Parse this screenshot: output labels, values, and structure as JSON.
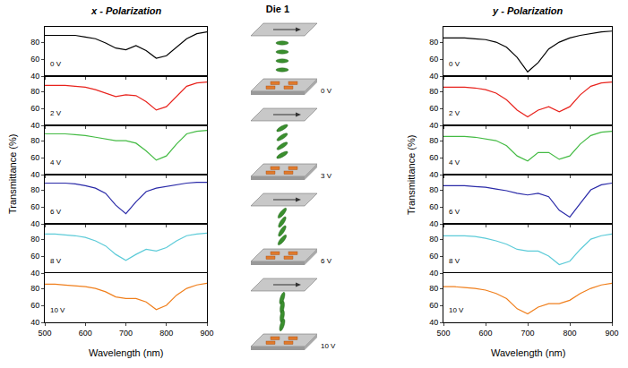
{
  "chart_data": [
    {
      "type": "line",
      "title": "x - Polarization",
      "x_label": "Wavelength (nm)",
      "y_label": "Transmittance (%)",
      "x": [
        500,
        525,
        550,
        575,
        600,
        625,
        650,
        675,
        700,
        725,
        750,
        775,
        800,
        825,
        850,
        875,
        900
      ],
      "xlim": [
        500,
        900
      ],
      "xticks": [
        500,
        600,
        700,
        800,
        900
      ],
      "ylim": [
        40,
        98
      ],
      "yticks": [
        40,
        60,
        80
      ],
      "series": [
        {
          "name": "0 V",
          "color": "#000000",
          "values": [
            88,
            88,
            88,
            88,
            86,
            84,
            79,
            73,
            71,
            76,
            70,
            61,
            64,
            74,
            84,
            90,
            92
          ]
        },
        {
          "name": "2 V",
          "color": "#e8221c",
          "values": [
            87,
            87,
            87,
            86,
            85,
            82,
            78,
            74,
            76,
            75,
            68,
            58,
            62,
            74,
            86,
            90,
            91
          ]
        },
        {
          "name": "4 V",
          "color": "#44bb44",
          "values": [
            88,
            88,
            88,
            87,
            86,
            84,
            82,
            80,
            80,
            77,
            68,
            57,
            62,
            76,
            88,
            91,
            92
          ]
        },
        {
          "name": "6 V",
          "color": "#2a2aa8",
          "values": [
            88,
            88,
            88,
            87,
            85,
            82,
            76,
            62,
            52,
            66,
            78,
            82,
            84,
            86,
            88,
            89,
            89
          ]
        },
        {
          "name": "8 V",
          "color": "#5ccbd8",
          "values": [
            86,
            86,
            85,
            84,
            82,
            78,
            72,
            62,
            55,
            62,
            68,
            66,
            70,
            78,
            84,
            86,
            87
          ]
        },
        {
          "name": "10 V",
          "color": "#f07f1c",
          "values": [
            85,
            85,
            84,
            83,
            82,
            80,
            76,
            70,
            68,
            68,
            64,
            55,
            60,
            72,
            80,
            84,
            86
          ]
        }
      ]
    },
    {
      "type": "line",
      "title": "y - Polarization",
      "x_label": "Wavelength (nm)",
      "y_label": "Transmittance (%)",
      "x": [
        500,
        525,
        550,
        575,
        600,
        625,
        650,
        675,
        700,
        725,
        750,
        775,
        800,
        825,
        850,
        875,
        900
      ],
      "xlim": [
        500,
        900
      ],
      "xticks": [
        500,
        600,
        700,
        800,
        900
      ],
      "ylim": [
        40,
        98
      ],
      "yticks": [
        40,
        60,
        80
      ],
      "series": [
        {
          "name": "0 V",
          "color": "#000000",
          "values": [
            85,
            85,
            85,
            84,
            83,
            80,
            74,
            62,
            45,
            56,
            72,
            80,
            85,
            88,
            90,
            92,
            93
          ]
        },
        {
          "name": "2 V",
          "color": "#e8221c",
          "values": [
            85,
            85,
            85,
            84,
            82,
            78,
            70,
            58,
            50,
            58,
            62,
            56,
            62,
            76,
            86,
            90,
            91
          ]
        },
        {
          "name": "4 V",
          "color": "#44bb44",
          "values": [
            85,
            85,
            85,
            84,
            82,
            80,
            74,
            62,
            56,
            66,
            66,
            58,
            62,
            76,
            86,
            90,
            91
          ]
        },
        {
          "name": "6 V",
          "color": "#2a2aa8",
          "values": [
            85,
            85,
            85,
            84,
            83,
            81,
            79,
            76,
            74,
            76,
            72,
            56,
            48,
            64,
            80,
            86,
            88
          ]
        },
        {
          "name": "8 V",
          "color": "#5ccbd8",
          "values": [
            84,
            84,
            84,
            83,
            81,
            78,
            74,
            68,
            66,
            66,
            60,
            50,
            54,
            68,
            80,
            84,
            86
          ]
        },
        {
          "name": "10 V",
          "color": "#f07f1c",
          "values": [
            82,
            82,
            81,
            80,
            78,
            74,
            68,
            56,
            50,
            58,
            62,
            62,
            66,
            74,
            80,
            84,
            86
          ]
        }
      ]
    }
  ],
  "diagram": {
    "title": "Die 1",
    "labels": [
      "0 V",
      "3 V",
      "6 V",
      "10 V"
    ]
  }
}
